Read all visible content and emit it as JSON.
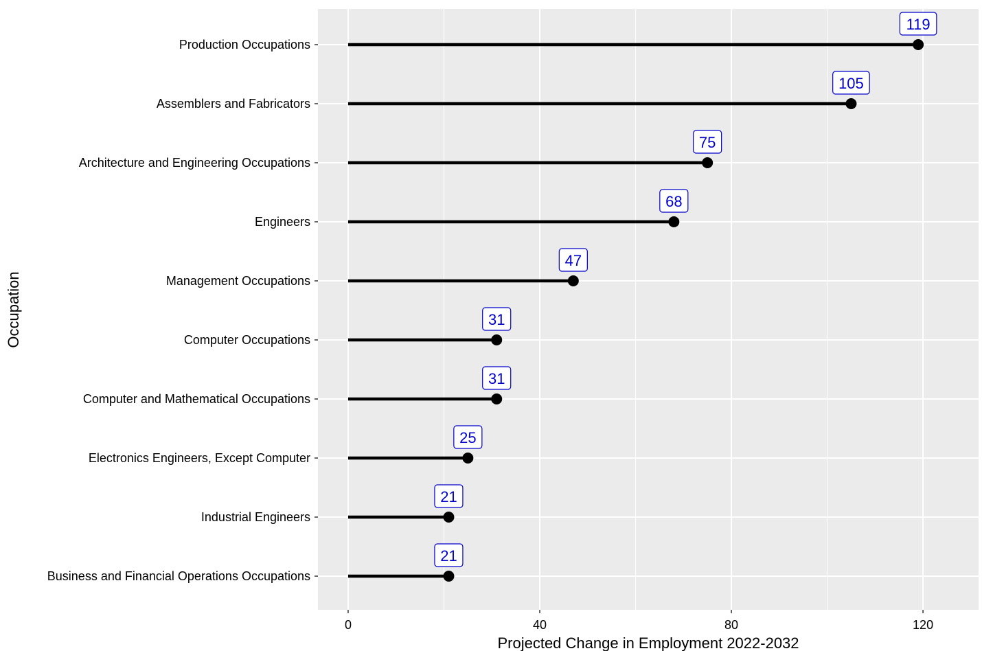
{
  "chart_data": {
    "type": "lollipop",
    "xlabel": "Projected Change in Employment 2022-2032",
    "ylabel": "Occupation",
    "xlim": [
      -6.3,
      131.6
    ],
    "x_ticks": [
      0,
      40,
      80,
      120
    ],
    "x_tick_labels": [
      "0",
      "40",
      "80",
      "120"
    ],
    "grid": true,
    "categories": [
      "Production Occupations",
      "Assemblers and Fabricators",
      "Architecture and Engineering Occupations",
      "Engineers",
      "Management Occupations",
      "Computer Occupations",
      "Computer and Mathematical Occupations",
      "Electronics Engineers, Except Computer",
      "Industrial Engineers",
      "Business and Financial Operations Occupations"
    ],
    "values": [
      119,
      105,
      75,
      68,
      47,
      31,
      31,
      25,
      21,
      21
    ],
    "data_labels": [
      "119",
      "105",
      "75",
      "68",
      "47",
      "31",
      "31",
      "25",
      "21",
      "21"
    ]
  },
  "colors": {
    "panel_background": "#ebebeb",
    "grid_line": "#ffffff",
    "stem": "#000000",
    "point": "#000000",
    "label_text": "#0000cc",
    "label_border": "#0000cc",
    "label_fill": "#ffffff"
  }
}
